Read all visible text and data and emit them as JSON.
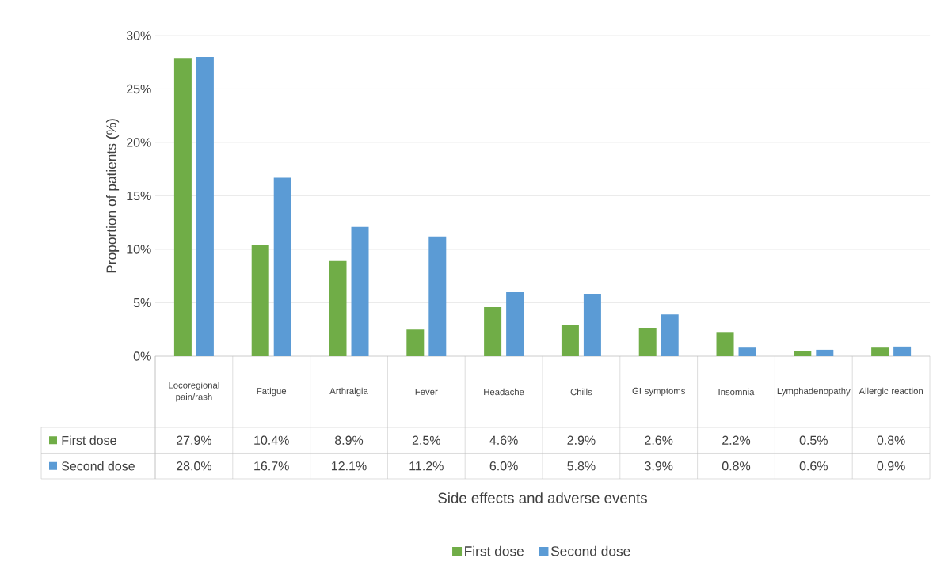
{
  "chart_data": {
    "type": "bar",
    "annotations": [
      "Side effects and adverse events"
    ],
    "ylabel": "Proportion of patients (%)",
    "categories": [
      "Locoregional pain/rash",
      "Fatigue",
      "Arthralgia",
      "Fever",
      "Headache",
      "Chills",
      "GI symptoms",
      "Insomnia",
      "Lymphadenopathy",
      "Allergic reaction"
    ],
    "series": [
      {
        "name": "First dose",
        "color": "#70ad47",
        "values": [
          27.9,
          10.4,
          8.9,
          2.5,
          4.6,
          2.9,
          2.6,
          2.2,
          0.5,
          0.8
        ],
        "value_labels": [
          "27.9%",
          "10.4%",
          "8.9%",
          "2.5%",
          "4.6%",
          "2.9%",
          "2.6%",
          "2.2%",
          "0.5%",
          "0.8%"
        ]
      },
      {
        "name": "Second dose",
        "color": "#5b9bd5",
        "values": [
          28.0,
          16.7,
          12.1,
          11.2,
          6.0,
          5.8,
          3.9,
          0.8,
          0.6,
          0.9
        ],
        "value_labels": [
          "28.0%",
          "16.7%",
          "12.1%",
          "11.2%",
          "6.0%",
          "5.8%",
          "3.9%",
          "0.8%",
          "0.6%",
          "0.9%"
        ]
      }
    ],
    "ylim": [
      0,
      30
    ],
    "yticks": [
      {
        "value": 0,
        "label": "0%"
      },
      {
        "value": 5,
        "label": "5%"
      },
      {
        "value": 10,
        "label": "10%"
      },
      {
        "value": 15,
        "label": "15%"
      },
      {
        "value": 20,
        "label": "20%"
      },
      {
        "value": 25,
        "label": "25%"
      },
      {
        "value": 30,
        "label": "30%"
      }
    ],
    "grid": "y",
    "legend": "bottom"
  }
}
